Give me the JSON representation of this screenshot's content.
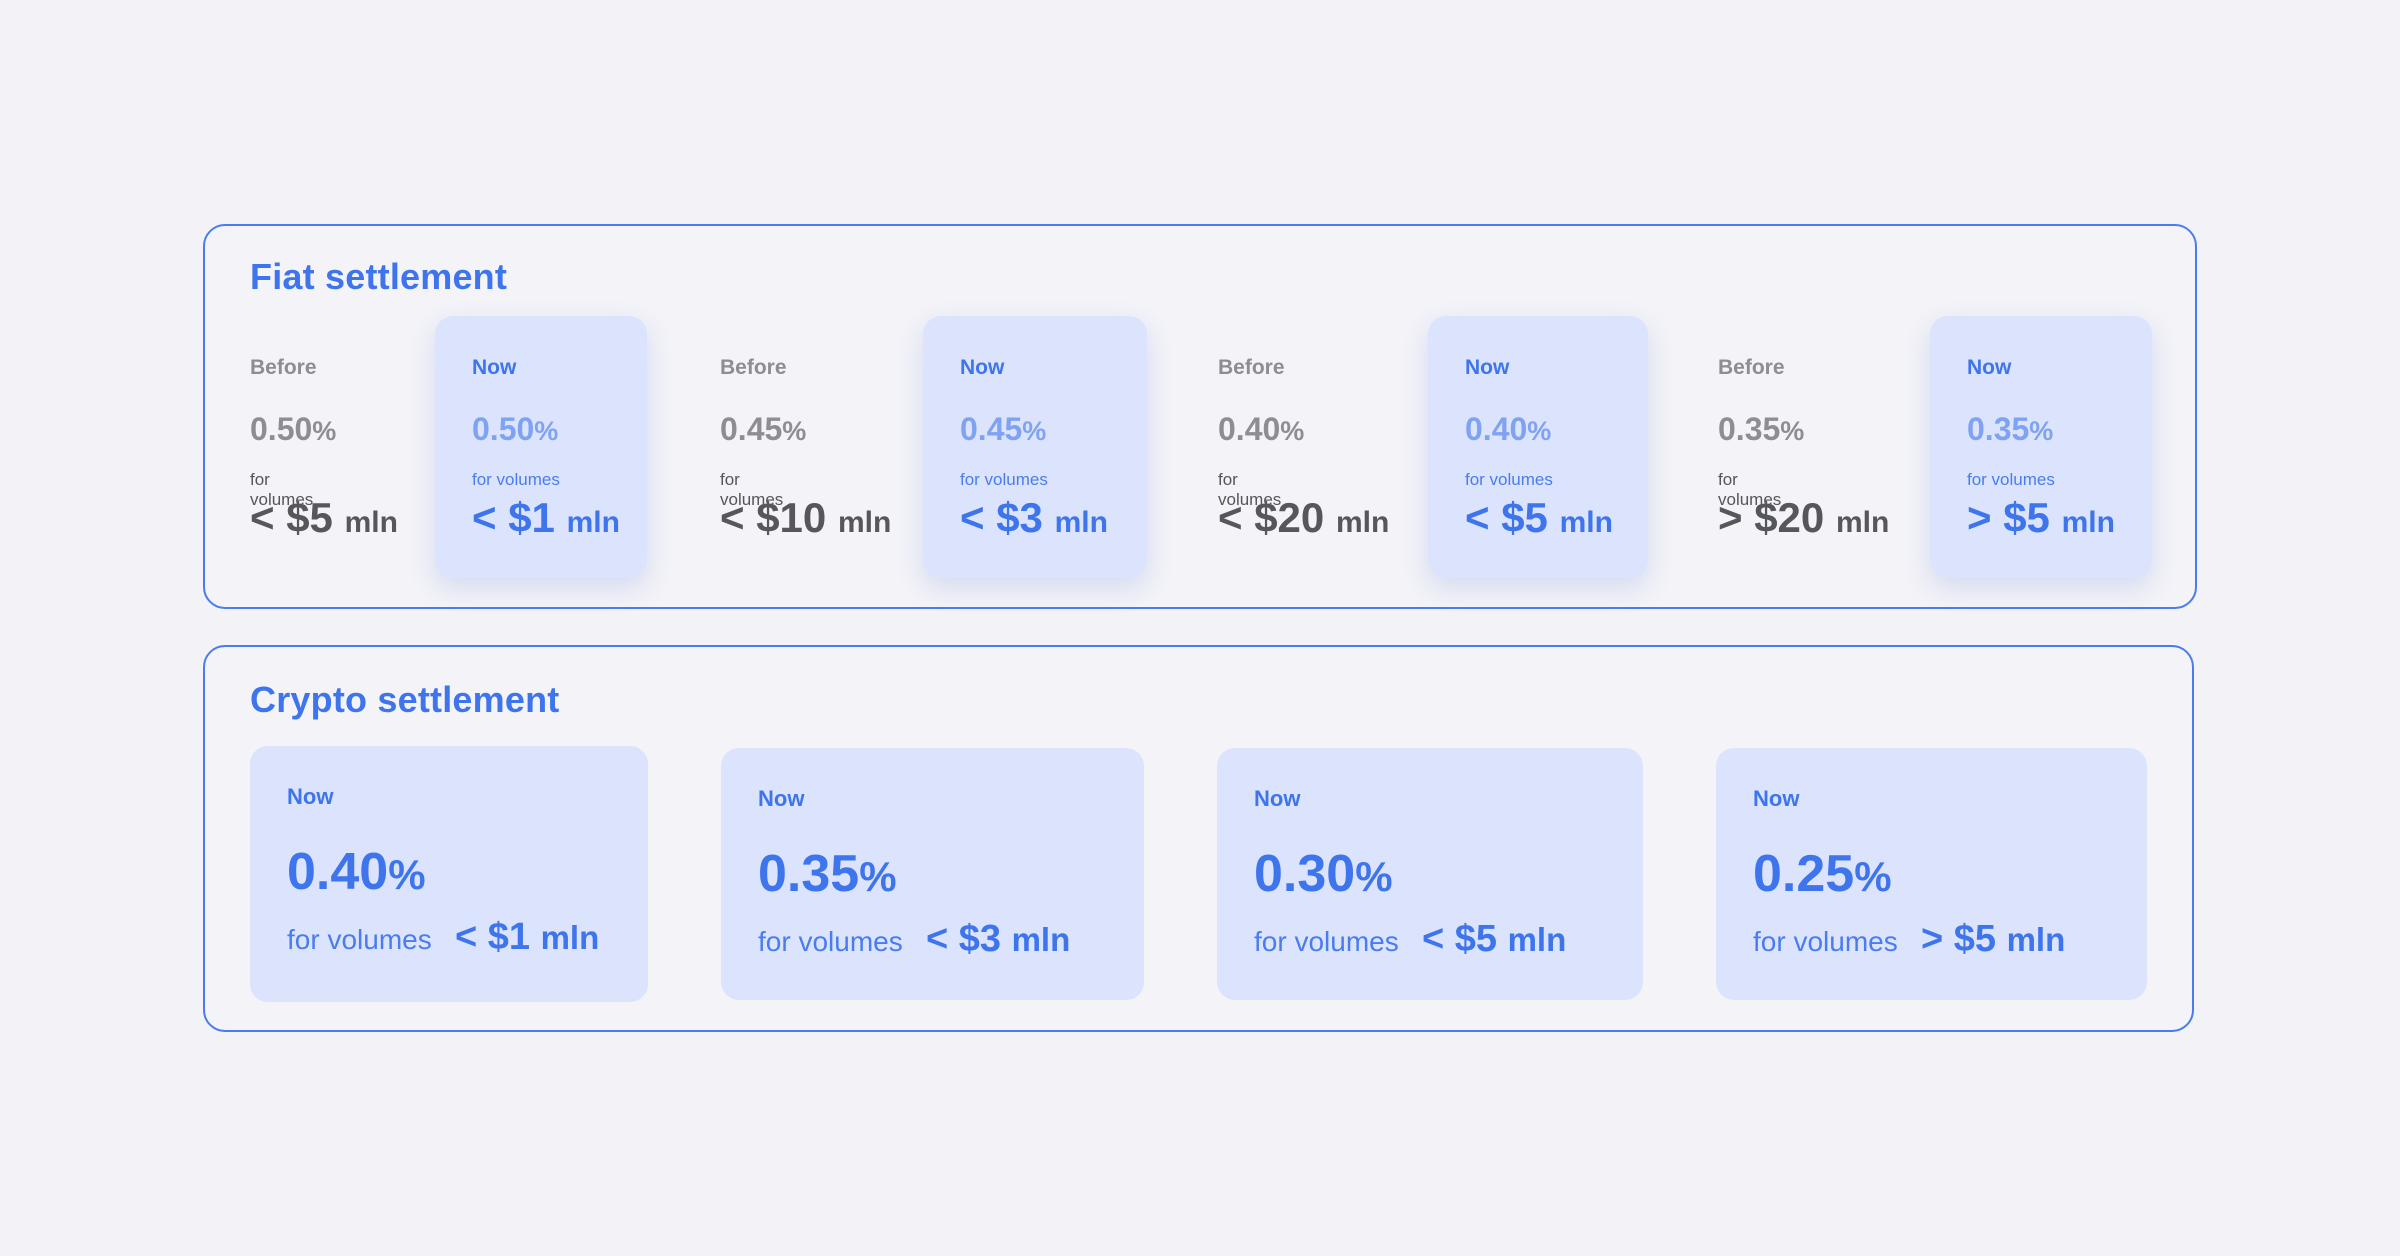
{
  "fiat": {
    "title": "Fiat settlement",
    "pairs": [
      {
        "before": {
          "label": "Before",
          "pct": "0.50",
          "sym": "%",
          "vol": "for volumes",
          "amt": "< $5",
          "unit": "mln"
        },
        "now": {
          "label": "Now",
          "pct": "0.50",
          "sym": "%",
          "vol": "for volumes",
          "amt": "< $1",
          "unit": "mln"
        }
      },
      {
        "before": {
          "label": "Before",
          "pct": "0.45",
          "sym": "%",
          "vol": "for volumes",
          "amt": "< $10",
          "unit": "mln"
        },
        "now": {
          "label": "Now",
          "pct": "0.45",
          "sym": "%",
          "vol": "for volumes",
          "amt": "< $3",
          "unit": "mln"
        }
      },
      {
        "before": {
          "label": "Before",
          "pct": "0.40",
          "sym": "%",
          "vol": "for volumes",
          "amt": "< $20",
          "unit": "mln"
        },
        "now": {
          "label": "Now",
          "pct": "0.40",
          "sym": "%",
          "vol": "for volumes",
          "amt": "< $5",
          "unit": "mln"
        }
      },
      {
        "before": {
          "label": "Before",
          "pct": "0.35",
          "sym": "%",
          "vol": "for volumes",
          "amt": "> $20",
          "unit": "mln"
        },
        "now": {
          "label": "Now",
          "pct": "0.35",
          "sym": "%",
          "vol": "for volumes",
          "amt": "> $5",
          "unit": "mln"
        }
      }
    ]
  },
  "crypto": {
    "title": "Crypto settlement",
    "cards": [
      {
        "label": "Now",
        "pct": "0.40",
        "sym": "%",
        "vol": "for volumes",
        "amt": "< $1",
        "unit": "mln"
      },
      {
        "label": "Now",
        "pct": "0.35",
        "sym": "%",
        "vol": "for volumes",
        "amt": "< $3",
        "unit": "mln"
      },
      {
        "label": "Now",
        "pct": "0.30",
        "sym": "%",
        "vol": "for volumes",
        "amt": "< $5",
        "unit": "mln"
      },
      {
        "label": "Now",
        "pct": "0.25",
        "sym": "%",
        "vol": "for volumes",
        "amt": "> $5",
        "unit": "mln"
      }
    ]
  },
  "colors": {
    "accent": "#3e74ec",
    "card_bg": "#dbe4fc",
    "page_bg": "#f2f2f7",
    "muted": "#8d8d93"
  }
}
